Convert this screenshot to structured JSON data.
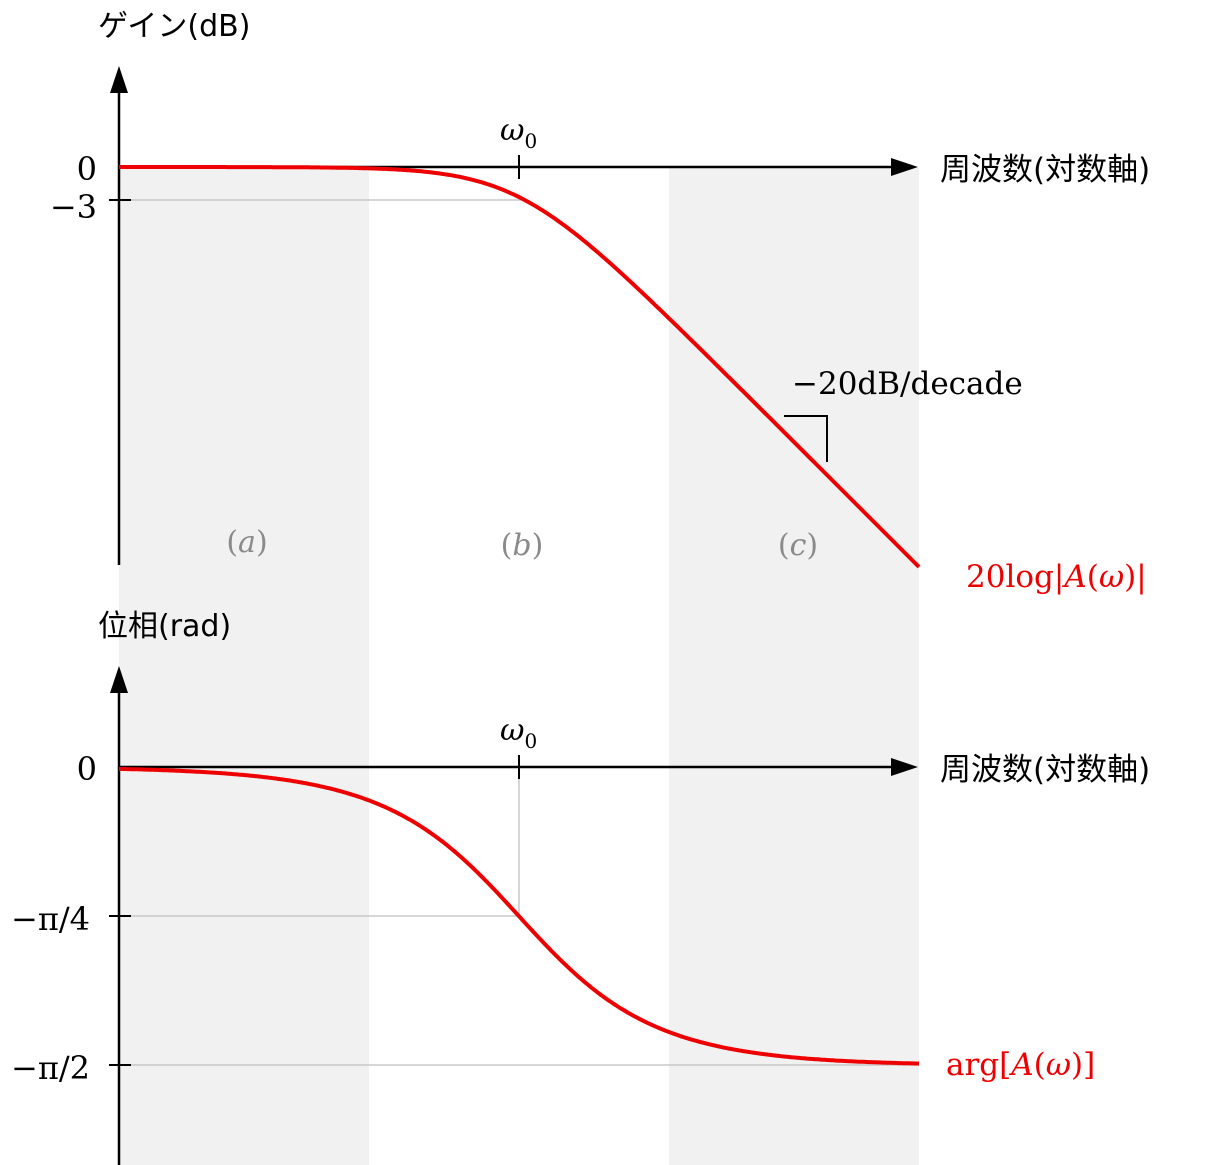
{
  "colors": {
    "curve": "#ee0000",
    "band": "#f1f1f1",
    "axis": "#000000",
    "guide": "#c8c8c8",
    "region_label": "#8a8a8a"
  },
  "chart_data": [
    {
      "type": "line",
      "ylabel": "ゲイン(dB)",
      "xlabel": "周波数(対数軸)",
      "x_scale": "log",
      "x_range_decades": [
        -2,
        2
      ],
      "y_ticks": [
        {
          "value": 0,
          "label": "0"
        },
        {
          "value": -3,
          "label": "−3"
        }
      ],
      "x_tick": {
        "label": "ω",
        "sub": "0"
      },
      "slope_annotation": "−20dB/decade",
      "series": [
        {
          "name": "20log|A(ω)|",
          "points": [
            [
              0.01,
              0
            ],
            [
              0.1,
              -0.04
            ],
            [
              0.3,
              -0.4
            ],
            [
              1,
              -3
            ],
            [
              3,
              -10
            ],
            [
              10,
              -20
            ],
            [
              100,
              -40
            ]
          ]
        }
      ],
      "regions": [
        "(a)",
        "(b)",
        "(c)"
      ]
    },
    {
      "type": "line",
      "ylabel": "位相(rad)",
      "xlabel": "周波数(対数軸)",
      "x_scale": "log",
      "x_range_decades": [
        -2,
        2
      ],
      "y_ticks": [
        {
          "value": 0,
          "label": "0"
        },
        {
          "value": -0.785,
          "label": "−π/4"
        },
        {
          "value": -1.571,
          "label": "−π/2"
        }
      ],
      "x_tick": {
        "label": "ω",
        "sub": "0"
      },
      "series": [
        {
          "name": "arg[A(ω)]",
          "points": [
            [
              0.01,
              -0.01
            ],
            [
              0.1,
              -0.1
            ],
            [
              1,
              -0.785
            ],
            [
              10,
              -1.47
            ],
            [
              100,
              -1.56
            ]
          ]
        }
      ]
    }
  ],
  "labels": {
    "gain_series": {
      "pre": "20log|",
      "A": "A",
      "mid": "(",
      "omega": "ω",
      "post": ")|"
    },
    "phase_series": {
      "pre": "arg[",
      "A": "A",
      "mid": "(",
      "omega": "ω",
      "post": ")]"
    },
    "region_a": {
      "open": "(",
      "letter": "a",
      "close": ")"
    },
    "region_b": {
      "open": "(",
      "letter": "b",
      "close": ")"
    },
    "region_c": {
      "open": "(",
      "letter": "c",
      "close": ")"
    }
  }
}
